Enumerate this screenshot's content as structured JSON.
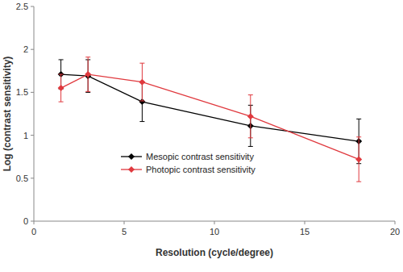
{
  "chart_data": {
    "type": "line",
    "x_label": "Resolution (cycle/degree)",
    "y_label": "Log (contrast sensitivity)",
    "x": [
      1.5,
      3,
      6,
      12,
      18
    ],
    "series": [
      {
        "name": "Mesopic contrast sensitivity",
        "color": "#000000",
        "marker": "diamond",
        "values": [
          1.71,
          1.69,
          1.39,
          1.11,
          0.93
        ],
        "errors": [
          0.17,
          0.19,
          0.23,
          0.24,
          0.26
        ]
      },
      {
        "name": "Photopic contrast sensitivity",
        "color": "#e0393e",
        "marker": "diamond",
        "values": [
          1.55,
          1.71,
          1.62,
          1.22,
          0.72
        ],
        "errors": [
          0.16,
          0.2,
          0.22,
          0.25,
          0.26
        ]
      }
    ],
    "xlim": [
      0,
      20
    ],
    "xticks": [
      0,
      5,
      10,
      15,
      20
    ],
    "ylim": [
      0,
      2.5
    ],
    "yticks": [
      0,
      0.5,
      1,
      1.5,
      2,
      2.5
    ],
    "grid": false,
    "legend": "left"
  }
}
